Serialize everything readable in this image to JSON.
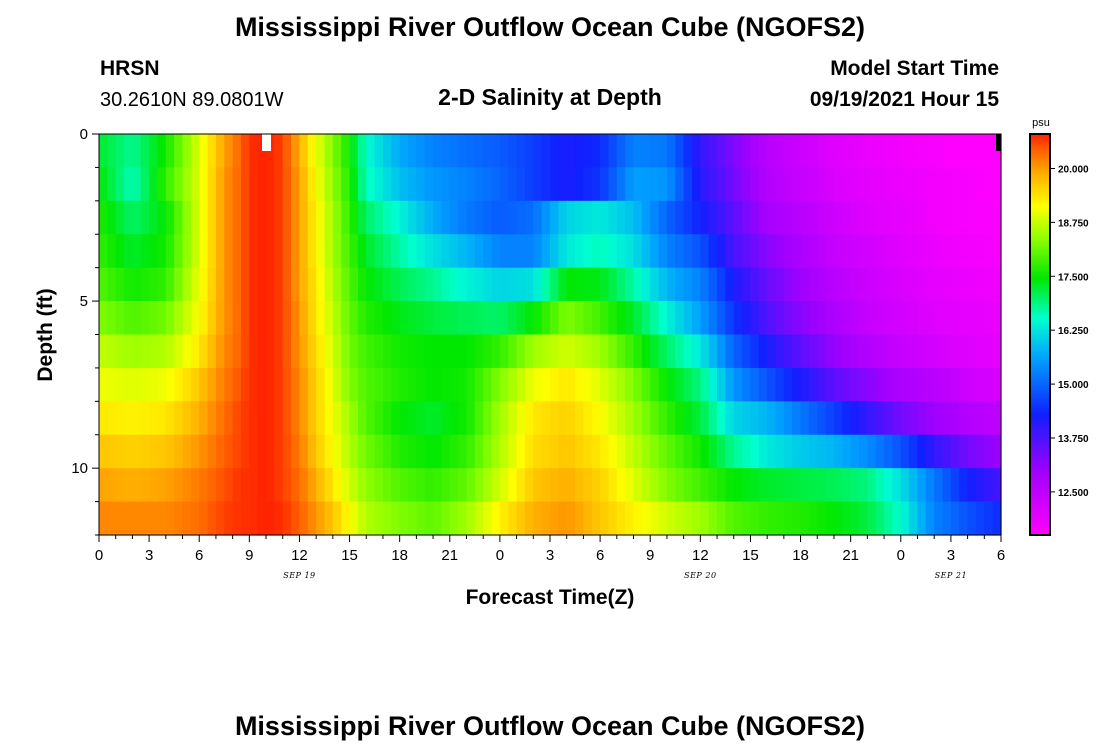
{
  "page": {
    "title": "Mississippi River Outflow Ocean Cube (NGOFS2)",
    "footer_title": "Mississippi River Outflow Ocean Cube (NGOFS2)",
    "station_id": "HRSN",
    "station_coords": "30.2610N  89.0801W",
    "model_start_label": "Model Start Time",
    "model_start_time": "09/19/2021 Hour 15"
  },
  "chart_data": {
    "type": "heatmap",
    "title": "2-D Salinity at Depth",
    "xlabel": "Forecast Time(Z)",
    "ylabel": "Depth (ft)",
    "x_range_hours": [
      0,
      54
    ],
    "y_range_ft": [
      0,
      12
    ],
    "x_ticks": [
      "0",
      "3",
      "6",
      "9",
      "12",
      "15",
      "18",
      "21",
      "0",
      "3",
      "6",
      "9",
      "12",
      "15",
      "18",
      "21",
      "0",
      "3",
      "6"
    ],
    "y_ticks": [
      "0",
      "5",
      "10"
    ],
    "date_labels": [
      {
        "label": "SEP 19",
        "hour": 12
      },
      {
        "label": "SEP 20",
        "hour": 36
      },
      {
        "label": "SEP 21",
        "hour": 51
      }
    ],
    "colorbar": {
      "unit": "psu",
      "range": [
        11.5,
        20.8
      ],
      "ticks": [
        "20.000",
        "18.750",
        "17.500",
        "16.250",
        "15.000",
        "13.750",
        "12.500"
      ],
      "tick_values": [
        20.0,
        18.75,
        17.5,
        16.25,
        15.0,
        13.75,
        12.5
      ]
    },
    "layers_ft": [
      0.5,
      1.5,
      2.5,
      3.5,
      4.5,
      5.5,
      6.5,
      7.5,
      8.5,
      9.5,
      10.5,
      11.5
    ],
    "profiles": {
      "hours": [
        0,
        2,
        4,
        6,
        7.5,
        8.5,
        9,
        10,
        11,
        12,
        13,
        14,
        15,
        16,
        18,
        20,
        22,
        24,
        26,
        28,
        30,
        32,
        34,
        36,
        38,
        40,
        42,
        44,
        46,
        48,
        50,
        52,
        54
      ],
      "salinity_by_layer": [
        [
          17.3,
          16.8,
          17.6,
          18.9,
          19.9,
          20.4,
          20.7,
          20.8,
          20.6,
          19.8,
          19.0,
          18.3,
          17.6,
          16.5,
          15.7,
          15.3,
          15.1,
          14.9,
          14.6,
          14.2,
          14.4,
          15.3,
          15.2,
          14.0,
          13.3,
          12.6,
          12.3,
          12.0,
          11.8,
          11.7,
          11.6,
          11.5,
          11.5
        ],
        [
          17.5,
          16.6,
          17.8,
          18.9,
          20.0,
          20.4,
          20.7,
          20.8,
          20.6,
          19.9,
          19.1,
          18.4,
          17.7,
          16.6,
          15.9,
          15.5,
          15.3,
          15.0,
          14.6,
          14.2,
          14.5,
          15.6,
          15.5,
          14.1,
          13.4,
          12.7,
          12.4,
          12.1,
          11.9,
          11.8,
          11.7,
          11.6,
          11.5
        ],
        [
          17.7,
          17.0,
          17.5,
          18.9,
          20.0,
          20.4,
          20.7,
          20.8,
          20.6,
          19.9,
          19.2,
          18.5,
          17.8,
          17.0,
          16.4,
          15.7,
          15.2,
          14.9,
          15.1,
          16.1,
          16.3,
          15.9,
          15.0,
          14.3,
          13.6,
          12.9,
          12.6,
          12.3,
          12.0,
          11.9,
          11.7,
          11.6,
          11.6
        ],
        [
          17.8,
          17.3,
          17.6,
          18.9,
          20.0,
          20.4,
          20.7,
          20.8,
          20.6,
          19.9,
          19.2,
          18.5,
          17.9,
          17.3,
          16.7,
          16.2,
          15.8,
          15.3,
          15.3,
          16.3,
          16.6,
          16.2,
          15.3,
          14.8,
          13.8,
          13.2,
          12.8,
          12.4,
          12.2,
          12.0,
          11.8,
          11.7,
          11.6
        ],
        [
          18.0,
          17.6,
          17.8,
          19.0,
          20.0,
          20.4,
          20.7,
          20.8,
          20.6,
          19.9,
          19.3,
          18.6,
          18.0,
          17.5,
          17.1,
          16.8,
          16.4,
          16.1,
          16.2,
          17.5,
          17.4,
          16.7,
          15.8,
          15.3,
          14.2,
          13.5,
          13.0,
          12.6,
          12.3,
          12.1,
          11.9,
          11.8,
          11.7
        ],
        [
          18.3,
          18.0,
          18.2,
          19.1,
          20.0,
          20.4,
          20.7,
          20.8,
          20.6,
          20.0,
          19.3,
          18.7,
          18.1,
          17.7,
          17.4,
          17.2,
          17.1,
          17.0,
          17.5,
          18.3,
          17.9,
          17.3,
          16.4,
          15.6,
          14.5,
          13.7,
          13.2,
          12.8,
          12.4,
          12.2,
          12.0,
          11.9,
          11.8
        ],
        [
          18.7,
          18.5,
          18.6,
          19.3,
          20.1,
          20.4,
          20.7,
          20.8,
          20.6,
          20.0,
          19.4,
          18.8,
          18.2,
          17.9,
          17.6,
          17.5,
          17.5,
          17.8,
          18.5,
          18.8,
          18.5,
          17.8,
          17.0,
          16.3,
          15.0,
          14.2,
          13.6,
          13.1,
          12.7,
          12.4,
          12.2,
          12.0,
          11.9
        ],
        [
          19.0,
          18.9,
          19.0,
          19.6,
          20.2,
          20.5,
          20.7,
          20.8,
          20.6,
          20.1,
          19.5,
          18.9,
          18.3,
          18.0,
          17.7,
          17.5,
          17.6,
          18.3,
          19.0,
          19.3,
          18.9,
          18.3,
          17.5,
          16.9,
          15.5,
          14.8,
          14.2,
          13.6,
          13.2,
          12.8,
          12.6,
          12.3,
          12.1
        ],
        [
          19.3,
          19.2,
          19.3,
          19.8,
          20.3,
          20.6,
          20.7,
          20.8,
          20.6,
          20.1,
          19.5,
          19.0,
          18.5,
          18.0,
          17.5,
          17.3,
          17.6,
          18.5,
          19.3,
          19.5,
          19.1,
          18.5,
          17.8,
          17.2,
          16.1,
          15.8,
          15.2,
          14.6,
          14.0,
          13.4,
          13.0,
          12.7,
          12.5
        ],
        [
          19.6,
          19.5,
          19.6,
          20.0,
          20.4,
          20.6,
          20.7,
          20.8,
          20.6,
          20.2,
          19.6,
          19.1,
          18.6,
          18.2,
          17.7,
          17.5,
          17.8,
          18.6,
          19.4,
          19.6,
          19.3,
          18.7,
          18.1,
          17.6,
          16.8,
          16.3,
          16.0,
          15.8,
          15.4,
          14.8,
          14.0,
          13.4,
          13.0
        ],
        [
          19.9,
          19.8,
          19.9,
          20.2,
          20.5,
          20.7,
          20.7,
          20.8,
          20.6,
          20.3,
          19.8,
          19.3,
          18.8,
          18.4,
          18.0,
          17.8,
          18.1,
          18.8,
          19.6,
          19.8,
          19.5,
          18.9,
          18.3,
          17.9,
          17.5,
          17.3,
          17.2,
          17.1,
          16.9,
          16.2,
          15.2,
          14.3,
          13.8
        ],
        [
          20.1,
          20.1,
          20.1,
          20.3,
          20.6,
          20.7,
          20.7,
          20.8,
          20.7,
          20.4,
          20.0,
          19.6,
          19.1,
          18.6,
          18.3,
          18.1,
          18.5,
          19.2,
          19.8,
          20.0,
          19.6,
          19.2,
          18.8,
          18.5,
          18.0,
          17.8,
          17.7,
          17.5,
          17.2,
          16.5,
          15.3,
          14.8,
          14.4
        ]
      ]
    }
  }
}
